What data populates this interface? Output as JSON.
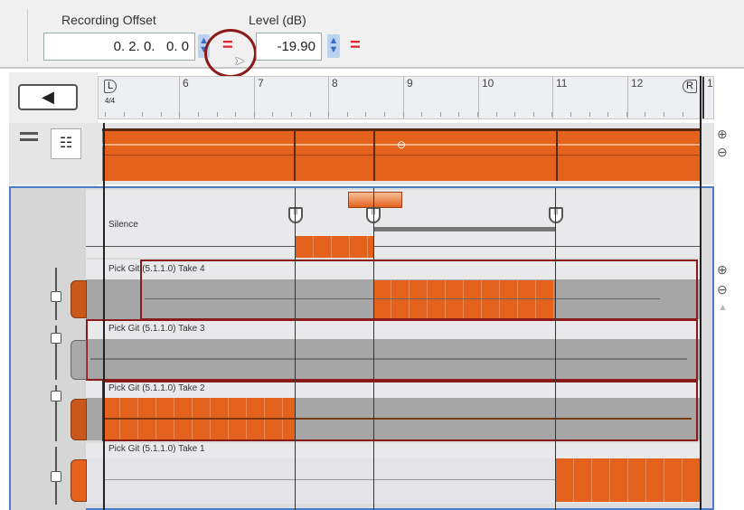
{
  "toolbar": {
    "recording_offset_label": "Recording Offset",
    "recording_offset_value": "0. 2. 0.   0. 0",
    "level_label": "Level (dB)",
    "level_value": "-19.90",
    "reset_icon": "=",
    "spinner_icon": "⇕"
  },
  "ruler": {
    "left_marker": "L",
    "time_signature": "4/4",
    "right_marker": "R",
    "measures": [
      "6",
      "7",
      "8",
      "9",
      "10",
      "11",
      "12",
      "1"
    ]
  },
  "lanes": {
    "silence_label": "Silence",
    "takes": [
      "Pick Git (5.1.1.0) Take 4",
      "Pick Git (5.1.1.0) Take 3",
      "Pick Git (5.1.1.0) Take 2",
      "Pick Git (5.1.1.0) Take 1"
    ]
  },
  "colors": {
    "accent": "#e4621c",
    "comp_border": "#8b1a1a",
    "selection": "#4a7cc9"
  }
}
